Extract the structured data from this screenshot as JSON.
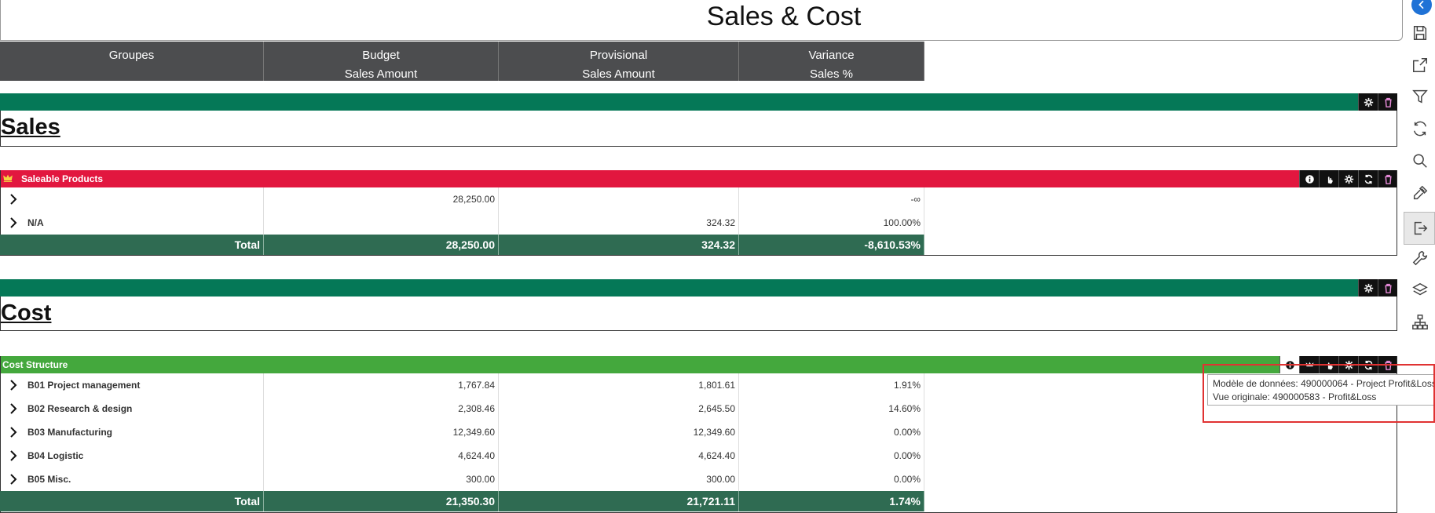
{
  "title": "Sales & Cost",
  "columns": [
    {
      "line1": "Groupes",
      "line2": ""
    },
    {
      "line1": "Budget",
      "line2": "Sales Amount"
    },
    {
      "line1": "Provisional",
      "line2": "Sales Amount"
    },
    {
      "line1": "Variance",
      "line2": "Sales %"
    }
  ],
  "sales": {
    "section_title": "Sales",
    "panel_title": "Saleable Products",
    "rows": [
      {
        "group": "",
        "budget": "28,250.00",
        "provisional": "",
        "variance": "-∞"
      },
      {
        "group": "N/A",
        "budget": "",
        "provisional": "324.32",
        "variance": "100.00%"
      }
    ],
    "total": {
      "label": "Total",
      "budget": "28,250.00",
      "provisional": "324.32",
      "variance": "-8,610.53%"
    }
  },
  "cost": {
    "section_title": "Cost",
    "panel_title": "Cost Structure",
    "rows": [
      {
        "group": "B01 Project management",
        "budget": "1,767.84",
        "provisional": "1,801.61",
        "variance": "1.91%"
      },
      {
        "group": "B02 Research & design",
        "budget": "2,308.46",
        "provisional": "2,645.50",
        "variance": "14.60%"
      },
      {
        "group": "B03 Manufacturing",
        "budget": "12,349.60",
        "provisional": "12,349.60",
        "variance": "0.00%"
      },
      {
        "group": "B04 Logistic",
        "budget": "4,624.40",
        "provisional": "4,624.40",
        "variance": "0.00%"
      },
      {
        "group": "B05 Misc.",
        "budget": "300.00",
        "provisional": "300.00",
        "variance": "0.00%"
      }
    ],
    "total": {
      "label": "Total",
      "budget": "21,350.30",
      "provisional": "21,721.11",
      "variance": "1.74%"
    }
  },
  "tooltip": {
    "line1": "Modèle de données: 490000064 - Project Profit&Loss",
    "line2": "Vue originale: 490000583 - Profit&Loss"
  },
  "colors": {
    "header_bg": "#4c4d4f",
    "section_band": "#057857",
    "sales_panel": "#e2173f",
    "cost_panel": "#44a83d",
    "total_row": "#2f6b52",
    "accent": "#1f72d6"
  },
  "toolbar_icons": [
    "back-icon",
    "save-icon",
    "export-icon",
    "filter-icon",
    "refresh-icon",
    "search-icon",
    "color-picker-icon",
    "logout-icon",
    "wrench-icon",
    "layers-icon",
    "hierarchy-icon"
  ]
}
